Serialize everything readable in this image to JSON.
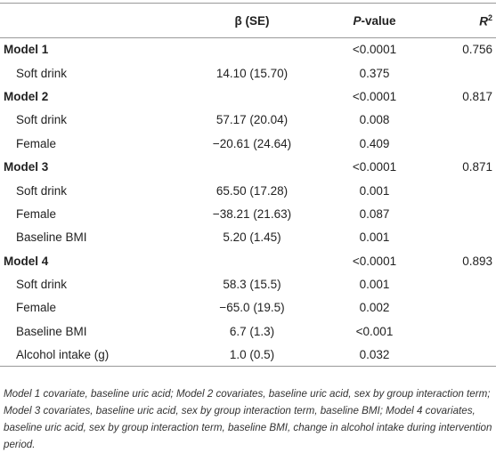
{
  "table": {
    "header": [
      [],
      [
        {
          "text": "β (SE)"
        }
      ],
      [
        {
          "text": "P",
          "italic": true
        },
        {
          "text": "-value"
        }
      ],
      [
        {
          "text": "R",
          "italic": true
        },
        {
          "text": "2",
          "sup": true
        }
      ]
    ],
    "rows": [
      {
        "kind": "model",
        "label": "Model 1",
        "p": "<0.0001",
        "r2": "0.756"
      },
      {
        "kind": "term",
        "label": "Soft drink",
        "beta": "14.10 (15.70)",
        "p": "0.375"
      },
      {
        "kind": "model",
        "label": "Model 2",
        "p": "<0.0001",
        "r2": "0.817"
      },
      {
        "kind": "term",
        "label": "Soft drink",
        "beta": "57.17 (20.04)",
        "p": "0.008"
      },
      {
        "kind": "term",
        "label": "Female",
        "beta": "−20.61 (24.64)",
        "p": "0.409"
      },
      {
        "kind": "model",
        "label": "Model 3",
        "p": "<0.0001",
        "r2": "0.871"
      },
      {
        "kind": "term",
        "label": "Soft drink",
        "beta": "65.50 (17.28)",
        "p": "0.001"
      },
      {
        "kind": "term",
        "label": "Female",
        "beta": "−38.21 (21.63)",
        "p": "0.087"
      },
      {
        "kind": "term",
        "label": "Baseline BMI",
        "beta": "5.20 (1.45)",
        "p": "0.001"
      },
      {
        "kind": "model",
        "label": "Model 4",
        "p": "<0.0001",
        "r2": "0.893"
      },
      {
        "kind": "term",
        "label": "Soft drink",
        "beta": "58.3 (15.5)",
        "p": "0.001"
      },
      {
        "kind": "term",
        "label": "Female",
        "beta": "−65.0 (19.5)",
        "p": "0.002"
      },
      {
        "kind": "term",
        "label": "Baseline BMI",
        "beta": "6.7 (1.3)",
        "p": "<0.001"
      },
      {
        "kind": "term",
        "label": "Alcohol intake (g)",
        "beta": "1.0 (0.5)",
        "p": "0.032"
      }
    ],
    "footnote": "Model 1 covariate, baseline uric acid; Model 2 covariates, baseline uric acid, sex by group interaction term; Model 3 covariates, baseline uric acid, sex by group interaction term, baseline BMI; Model 4 covariates, baseline uric acid, sex by group interaction term, baseline BMI, change in alcohol intake during intervention period."
  }
}
